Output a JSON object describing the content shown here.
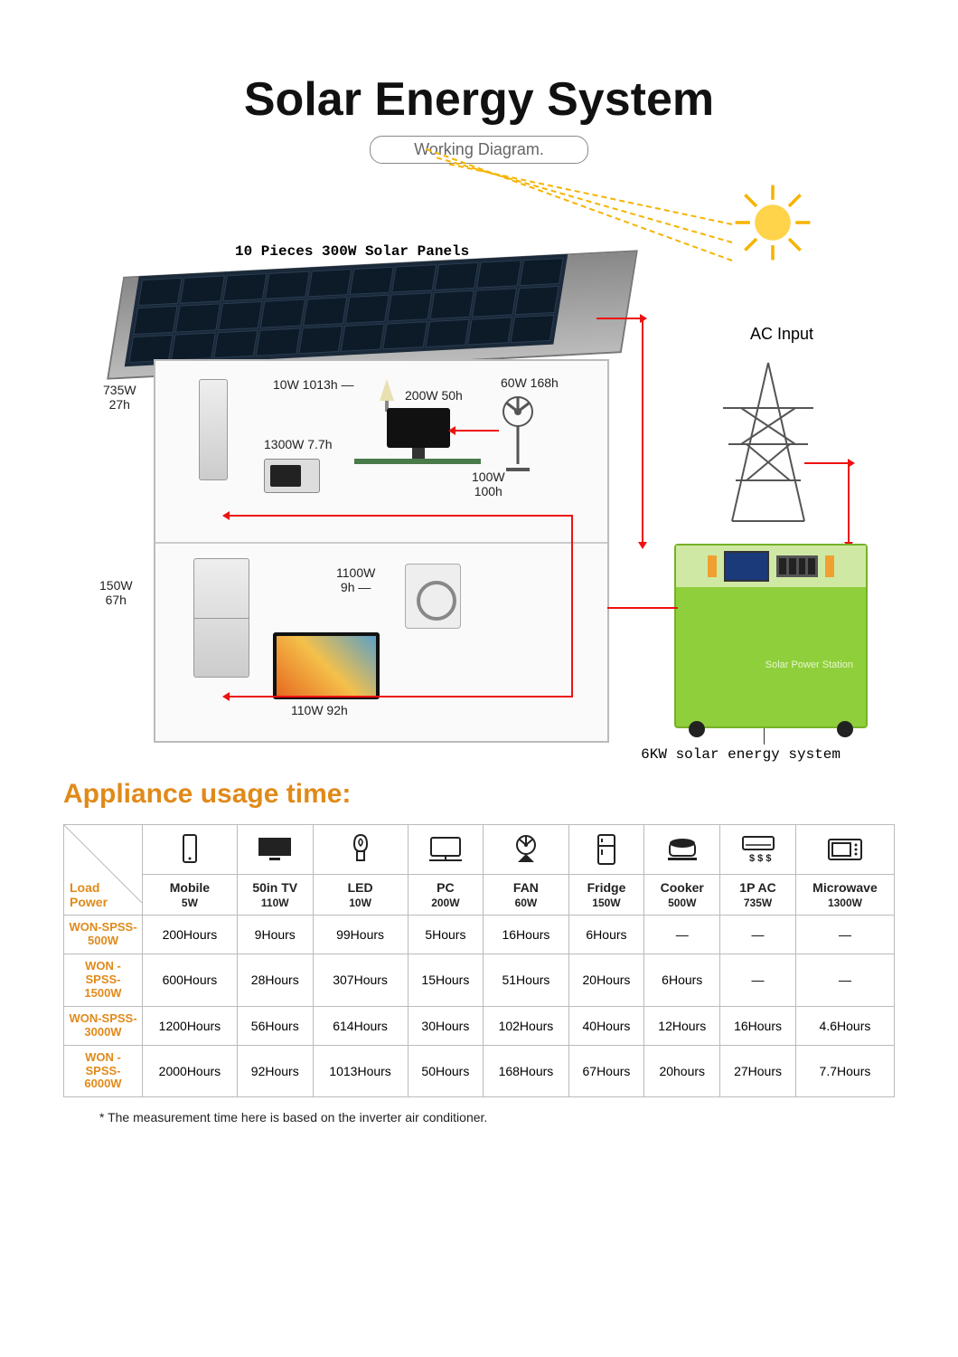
{
  "title": "Solar Energy System",
  "subtitle": "Working Diagram.",
  "panel_label": "10 Pieces 300W Solar Panels",
  "ac_input_label": "AC Input",
  "inverter_label": "6KW solar energy system",
  "inverter_body": "Solar Power Station",
  "diagram_labels": {
    "ac": "735W\n27h",
    "microwave": "1300W 7.7h",
    "led": "10W 1013h —",
    "pc": "200W 50h",
    "fan": "60W 168h",
    "speaker": "100W\n100h",
    "fridge": "150W\n67h",
    "washer": "1100W\n9h",
    "tv": "110W 92h"
  },
  "section_title": "Appliance usage time:",
  "corner_label": "Load\nPower",
  "columns": [
    {
      "icon": "mobile",
      "name": "Mobile",
      "power": "5W"
    },
    {
      "icon": "tv",
      "name": "50in TV",
      "power": "110W"
    },
    {
      "icon": "led",
      "name": "LED",
      "power": "10W"
    },
    {
      "icon": "pc",
      "name": "PC",
      "power": "200W"
    },
    {
      "icon": "fan",
      "name": "FAN",
      "power": "60W"
    },
    {
      "icon": "fridge",
      "name": "Fridge",
      "power": "150W"
    },
    {
      "icon": "cooker",
      "name": "Cooker",
      "power": "500W"
    },
    {
      "icon": "ac",
      "name": "1P AC",
      "power": "735W"
    },
    {
      "icon": "microwave",
      "name": "Microwave",
      "power": "1300W"
    }
  ],
  "rows": [
    {
      "model": "WON-SPSS-500W",
      "cells": [
        "200Hours",
        "9Hours",
        "99Hours",
        "5Hours",
        "16Hours",
        "6Hours",
        "—",
        "—",
        "—"
      ]
    },
    {
      "model": "WON -SPSS-1500W",
      "cells": [
        "600Hours",
        "28Hours",
        "307Hours",
        "15Hours",
        "51Hours",
        "20Hours",
        "6Hours",
        "—",
        "—"
      ]
    },
    {
      "model": "WON-SPSS-3000W",
      "cells": [
        "1200Hours",
        "56Hours",
        "614Hours",
        "30Hours",
        "102Hours",
        "40Hours",
        "12Hours",
        "16Hours",
        "4.6Hours"
      ]
    },
    {
      "model": "WON -SPSS-6000W",
      "cells": [
        "2000Hours",
        "92Hours",
        "1013Hours",
        "50Hours",
        "168Hours",
        "67Hours",
        "20hours",
        "27Hours",
        "7.7Hours"
      ]
    }
  ],
  "footnote": "*   The measurement time here is based on the inverter air conditioner.",
  "colors": {
    "accent": "#e08a1a",
    "wire": "#e11",
    "inverter": "#8fcf3b",
    "sun": "#ffd34a"
  },
  "table_style": {
    "border_color": "#bbb",
    "font_size": 14,
    "model_color": "#e08a1a"
  }
}
